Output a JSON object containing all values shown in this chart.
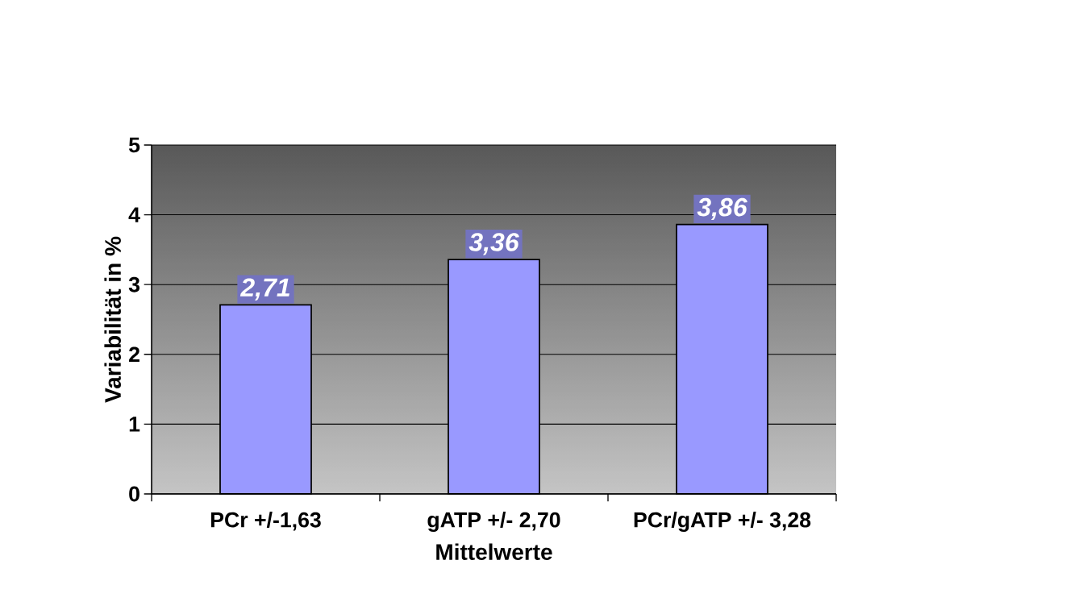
{
  "chart_data": {
    "type": "bar",
    "xlabel": "Mittelwerte",
    "ylabel": "Variabilität in %",
    "categories": [
      "PCr +/-1,63",
      "gATP +/- 2,70",
      "PCr/gATP +/- 3,28"
    ],
    "values": [
      2.71,
      3.36,
      3.86
    ],
    "color": "#9999ff",
    "value_labels": [
      "2,71",
      "3,36",
      "3,86"
    ],
    "ylim": [
      0,
      5
    ],
    "yticks": [
      0,
      1,
      2,
      3,
      4,
      5
    ],
    "grid": "y"
  }
}
